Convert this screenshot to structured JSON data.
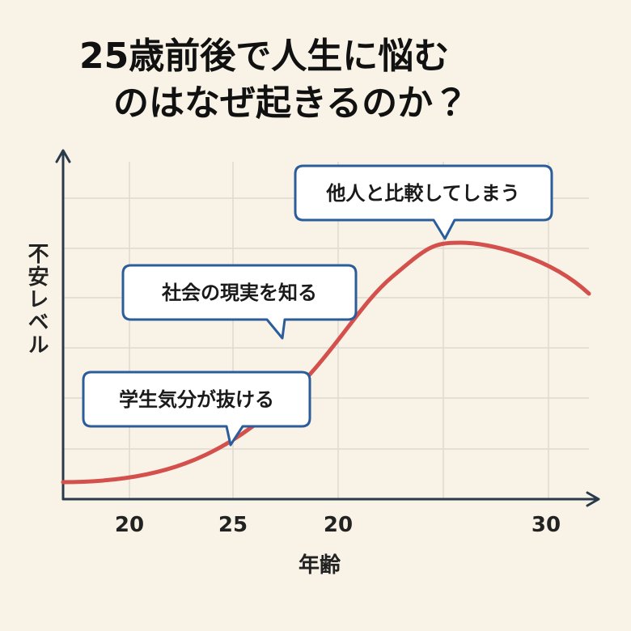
{
  "title": {
    "lines": [
      "25歳前後で人生に悩む",
      "のはなぜ起きるのか？"
    ]
  },
  "axes": {
    "y_label": "不安レベル",
    "x_label": "年齢",
    "x_tick_labels": [
      "20",
      "25",
      "20",
      "30"
    ]
  },
  "callouts": [
    "他人と比較してしまう",
    "社会の現実を知る",
    "学生気分が抜ける"
  ]
}
